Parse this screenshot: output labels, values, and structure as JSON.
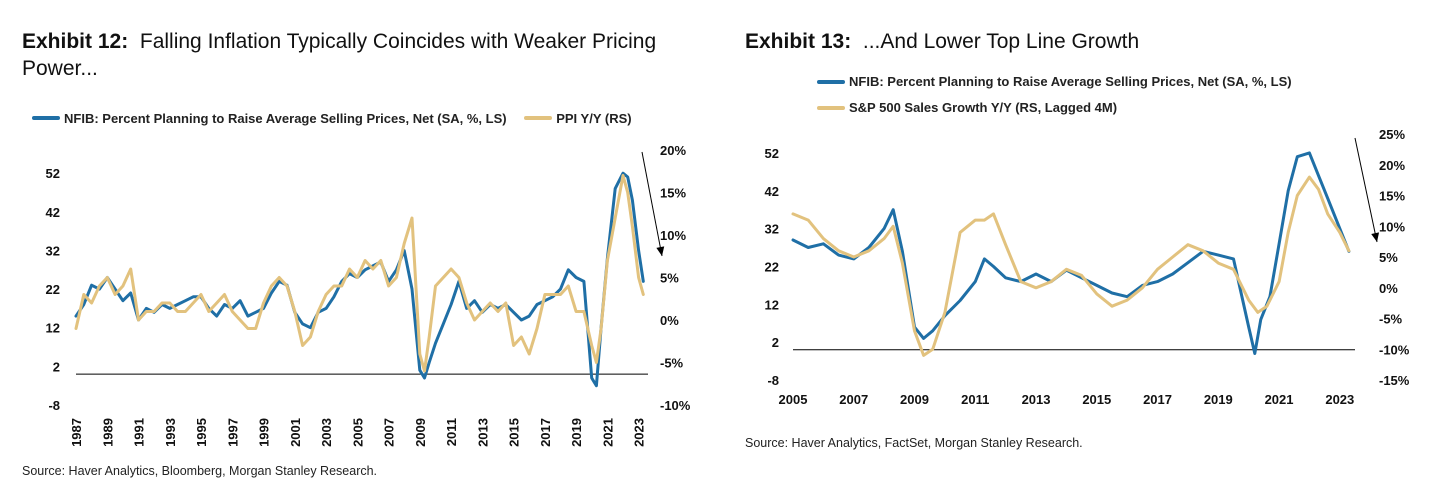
{
  "chart_data": [
    {
      "type": "line",
      "exhibit": "Exhibit 12:",
      "title": "Falling Inflation Typically Coincides with Weaker Pricing Power...",
      "xlabel": "",
      "ylabel": "",
      "x_ticks": [
        "1987",
        "1989",
        "1991",
        "1993",
        "1995",
        "1997",
        "1999",
        "2001",
        "2003",
        "2005",
        "2007",
        "2009",
        "2011",
        "2013",
        "2015",
        "2017",
        "2019",
        "2021",
        "2023"
      ],
      "x_range": [
        1987,
        2023.6
      ],
      "y_left": {
        "ticks": [
          "52",
          "42",
          "32",
          "22",
          "12",
          "2",
          "-8"
        ],
        "range": [
          -8,
          58
        ]
      },
      "y_right": {
        "ticks": [
          "20%",
          "15%",
          "10%",
          "5%",
          "0%",
          "-5%",
          "-10%"
        ],
        "range": [
          -10,
          20
        ]
      },
      "baseline_left": 0,
      "legend_position": "top",
      "grid": false,
      "annotation": "downward arrow near latest values",
      "series": [
        {
          "name": "NFIB: Percent Planning to Raise Average Selling Prices, Net (SA, %, LS)",
          "axis": "left",
          "color": "#1f6fa6",
          "x": [
            1987.0,
            1987.5,
            1988.0,
            1988.5,
            1989.0,
            1989.5,
            1990.0,
            1990.5,
            1991.0,
            1991.5,
            1992.0,
            1992.5,
            1993.0,
            1993.5,
            1994.0,
            1994.5,
            1995.0,
            1995.5,
            1996.0,
            1996.5,
            1997.0,
            1997.5,
            1998.0,
            1998.5,
            1999.0,
            1999.5,
            2000.0,
            2000.5,
            2001.0,
            2001.5,
            2002.0,
            2002.5,
            2003.0,
            2003.5,
            2004.0,
            2004.5,
            2005.0,
            2005.5,
            2006.0,
            2006.5,
            2007.0,
            2007.5,
            2008.0,
            2008.5,
            2009.0,
            2009.3,
            2009.6,
            2010.0,
            2010.5,
            2011.0,
            2011.5,
            2012.0,
            2012.5,
            2013.0,
            2013.5,
            2014.0,
            2014.5,
            2015.0,
            2015.5,
            2016.0,
            2016.5,
            2017.0,
            2017.5,
            2018.0,
            2018.5,
            2019.0,
            2019.5,
            2020.0,
            2020.3,
            2020.6,
            2021.0,
            2021.5,
            2022.0,
            2022.3,
            2022.6,
            2023.0,
            2023.3
          ],
          "values": [
            15,
            18,
            23,
            22,
            25,
            22,
            19,
            21,
            14,
            17,
            16,
            18,
            17,
            18,
            19,
            20,
            20,
            17,
            15,
            18,
            17,
            19,
            15,
            16,
            17,
            21,
            24,
            23,
            16,
            13,
            12,
            16,
            17,
            20,
            24,
            26,
            25,
            27,
            28,
            29,
            24,
            27,
            32,
            22,
            1,
            -1,
            3,
            8,
            13,
            18,
            24,
            17,
            19,
            16,
            18,
            17,
            18,
            16,
            14,
            15,
            18,
            19,
            20,
            22,
            27,
            25,
            24,
            -1,
            -3,
            12,
            30,
            48,
            52,
            51,
            45,
            32,
            24
          ]
        },
        {
          "name": "PPI Y/Y (RS)",
          "axis": "right",
          "color": "#e2c27e",
          "x": [
            1987.0,
            1987.5,
            1988.0,
            1988.5,
            1989.0,
            1989.5,
            1990.0,
            1990.5,
            1991.0,
            1991.5,
            1992.0,
            1992.5,
            1993.0,
            1993.5,
            1994.0,
            1994.5,
            1995.0,
            1995.5,
            1996.0,
            1996.5,
            1997.0,
            1997.5,
            1998.0,
            1998.5,
            1999.0,
            1999.5,
            2000.0,
            2000.5,
            2001.0,
            2001.5,
            2002.0,
            2002.5,
            2003.0,
            2003.5,
            2004.0,
            2004.5,
            2005.0,
            2005.5,
            2006.0,
            2006.5,
            2007.0,
            2007.5,
            2008.0,
            2008.5,
            2009.0,
            2009.3,
            2009.6,
            2010.0,
            2010.5,
            2011.0,
            2011.5,
            2012.0,
            2012.5,
            2013.0,
            2013.5,
            2014.0,
            2014.5,
            2015.0,
            2015.5,
            2016.0,
            2016.5,
            2017.0,
            2017.5,
            2018.0,
            2018.5,
            2019.0,
            2019.5,
            2020.0,
            2020.3,
            2020.6,
            2021.0,
            2021.5,
            2022.0,
            2022.3,
            2022.6,
            2023.0,
            2023.3
          ],
          "values": [
            -1,
            3,
            2,
            4,
            5,
            3,
            4,
            6,
            0,
            1,
            1,
            2,
            2,
            1,
            1,
            2,
            3,
            1,
            2,
            3,
            1,
            0,
            -1,
            -1,
            2,
            4,
            5,
            4,
            1,
            -3,
            -2,
            1,
            3,
            4,
            4,
            6,
            5,
            7,
            6,
            7,
            4,
            5,
            9,
            12,
            -4,
            -6,
            -2,
            4,
            5,
            6,
            5,
            2,
            0,
            1,
            2,
            1,
            2,
            -3,
            -2,
            -4,
            -1,
            3,
            3,
            3,
            4,
            1,
            1,
            -3,
            -5,
            -1,
            7,
            12,
            17,
            15,
            11,
            5,
            3
          ]
        }
      ]
    },
    {
      "type": "line",
      "exhibit": "Exhibit 13:",
      "title": "...And Lower Top Line Growth",
      "xlabel": "",
      "ylabel": "",
      "x_ticks": [
        "2005",
        "2007",
        "2009",
        "2011",
        "2013",
        "2015",
        "2017",
        "2019",
        "2021",
        "2023"
      ],
      "x_range": [
        2005,
        2023.5
      ],
      "y_left": {
        "ticks": [
          "52",
          "42",
          "32",
          "22",
          "12",
          "2",
          "-8"
        ],
        "range": [
          -8,
          57
        ]
      },
      "y_right": {
        "ticks": [
          "25%",
          "20%",
          "15%",
          "10%",
          "5%",
          "0%",
          "-5%",
          "-10%",
          "-15%"
        ],
        "range": [
          -15,
          25
        ]
      },
      "baseline_left": 0,
      "legend_position": "top",
      "grid": false,
      "annotation": "downward arrow near latest values",
      "series": [
        {
          "name": "NFIB: Percent Planning to Raise Average Selling Prices, Net (SA, %, LS)",
          "axis": "left",
          "color": "#1f6fa6",
          "x": [
            2005.0,
            2005.5,
            2006.0,
            2006.5,
            2007.0,
            2007.5,
            2008.0,
            2008.3,
            2008.6,
            2009.0,
            2009.3,
            2009.6,
            2010.0,
            2010.5,
            2011.0,
            2011.3,
            2011.6,
            2012.0,
            2012.5,
            2013.0,
            2013.5,
            2014.0,
            2014.5,
            2015.0,
            2015.5,
            2016.0,
            2016.5,
            2017.0,
            2017.5,
            2018.0,
            2018.5,
            2019.0,
            2019.5,
            2020.0,
            2020.2,
            2020.4,
            2020.7,
            2021.0,
            2021.3,
            2021.6,
            2022.0,
            2022.3,
            2022.6,
            2023.0,
            2023.3
          ],
          "values": [
            29,
            27,
            28,
            25,
            24,
            27,
            32,
            37,
            26,
            6,
            3,
            5,
            9,
            13,
            18,
            24,
            22,
            19,
            18,
            20,
            18,
            21,
            19,
            17,
            15,
            14,
            17,
            18,
            20,
            23,
            26,
            25,
            24,
            6,
            -1,
            8,
            14,
            28,
            42,
            51,
            52,
            46,
            40,
            32,
            26
          ]
        },
        {
          "name": "S&P 500 Sales Growth Y/Y (RS, Lagged 4M)",
          "axis": "right",
          "color": "#e2c27e",
          "x": [
            2005.0,
            2005.5,
            2006.0,
            2006.5,
            2007.0,
            2007.5,
            2008.0,
            2008.3,
            2008.6,
            2009.0,
            2009.3,
            2009.6,
            2010.0,
            2010.5,
            2011.0,
            2011.3,
            2011.6,
            2012.0,
            2012.5,
            2013.0,
            2013.5,
            2014.0,
            2014.5,
            2015.0,
            2015.5,
            2016.0,
            2016.5,
            2017.0,
            2017.5,
            2018.0,
            2018.5,
            2019.0,
            2019.5,
            2020.0,
            2020.3,
            2020.6,
            2021.0,
            2021.3,
            2021.6,
            2022.0,
            2022.3,
            2022.6,
            2023.0,
            2023.3
          ],
          "values": [
            12,
            11,
            8,
            6,
            5,
            6,
            8,
            10,
            4,
            -7,
            -11,
            -10,
            -4,
            9,
            11,
            11,
            12,
            7,
            1,
            0,
            1,
            3,
            2,
            -1,
            -3,
            -2,
            0,
            3,
            5,
            7,
            6,
            4,
            3,
            -2,
            -4,
            -3,
            1,
            9,
            15,
            18,
            16,
            12,
            9,
            6
          ]
        }
      ]
    }
  ],
  "sources": {
    "left": "Source: Haver Analytics, Bloomberg, Morgan Stanley Research.",
    "right": "Source: Haver Analytics, FactSet, Morgan Stanley Research."
  }
}
